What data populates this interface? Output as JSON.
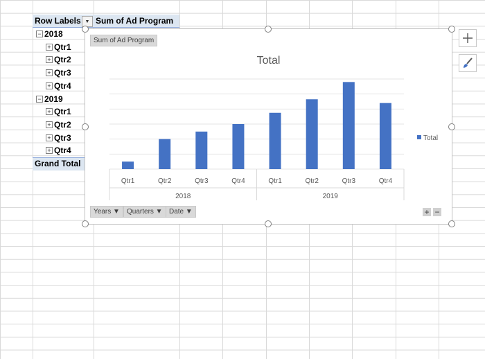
{
  "pivot": {
    "row_labels": "Row Labels",
    "value_header": "Sum of Ad Program",
    "rows": [
      {
        "label": "2018",
        "level": 0,
        "toggle": "−"
      },
      {
        "label": "Qtr1",
        "level": 1,
        "toggle": "+"
      },
      {
        "label": "Qtr2",
        "level": 1,
        "toggle": "+"
      },
      {
        "label": "Qtr3",
        "level": 1,
        "toggle": "+"
      },
      {
        "label": "Qtr4",
        "level": 1,
        "toggle": "+"
      },
      {
        "label": "2019",
        "level": 0,
        "toggle": "−"
      },
      {
        "label": "Qtr1",
        "level": 1,
        "toggle": "+"
      },
      {
        "label": "Qtr2",
        "level": 1,
        "toggle": "+"
      },
      {
        "label": "Qtr3",
        "level": 1,
        "toggle": "+"
      },
      {
        "label": "Qtr4",
        "level": 1,
        "toggle": "+"
      }
    ],
    "grand_total": "Grand Total"
  },
  "chart_ui": {
    "value_field_button": "Sum of Ad Program",
    "axis_field_buttons": [
      "Years",
      "Quarters",
      "Date"
    ],
    "expand_label": "+",
    "collapse_label": "−"
  },
  "chart_data": {
    "type": "bar",
    "title": "Total",
    "categories": [
      "Qtr1",
      "Qtr2",
      "Qtr3",
      "Qtr4",
      "Qtr1",
      "Qtr2",
      "Qtr3",
      "Qtr4"
    ],
    "groups": [
      "2018",
      "2019"
    ],
    "series": [
      {
        "name": "Total",
        "values": [
          1,
          4,
          5,
          6,
          7.5,
          9.3,
          11.6,
          8.8
        ],
        "color": "#4472c4"
      }
    ],
    "legend_position": "right",
    "grid": true,
    "ylim": [
      0,
      12
    ]
  },
  "colors": {
    "bar": "#4472c4",
    "header_bg": "#dce6f1"
  }
}
